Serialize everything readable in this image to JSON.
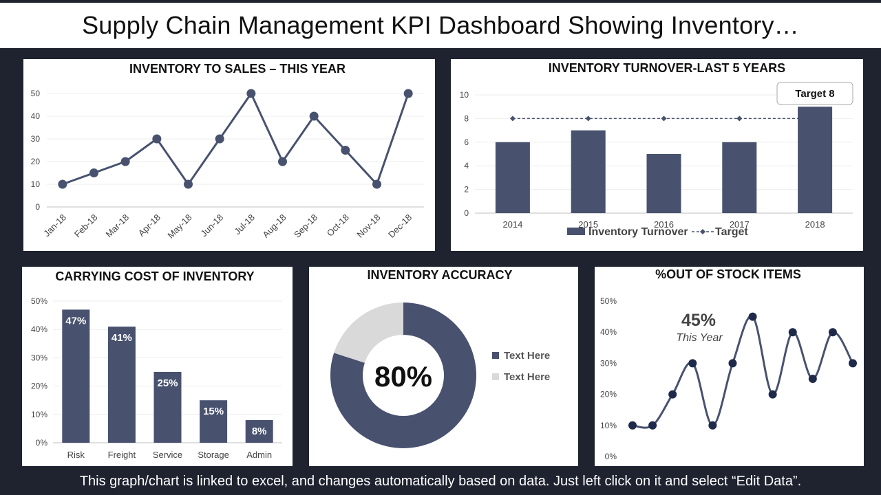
{
  "page": {
    "title": "Supply Chain Management KPI Dashboard Showing Inventory…",
    "footer": "This graph/chart is linked to excel, and changes automatically based on data. Just left click on it and select “Edit Data”."
  },
  "colors": {
    "primary": "#48526f",
    "light": "#d9d9d9",
    "background": "#1f2330"
  },
  "chart_data": [
    {
      "id": "inventory-to-sales",
      "type": "line",
      "title": "INVENTORY TO SALES – THIS YEAR",
      "categories": [
        "Jan-18",
        "Feb-18",
        "Mar-18",
        "Apr-18",
        "May-18",
        "Jun-18",
        "Jul-18",
        "Aug-18",
        "Sep-18",
        "Oct-18",
        "Nov-18",
        "Dec-18"
      ],
      "values": [
        10,
        15,
        20,
        30,
        10,
        30,
        50,
        20,
        40,
        25,
        10,
        50
      ],
      "ylim": [
        0,
        50
      ],
      "yticks": [
        "0",
        "10",
        "20",
        "30",
        "40",
        "50"
      ],
      "grid": true
    },
    {
      "id": "inventory-turnover",
      "type": "bar",
      "title": "INVENTORY TURNOVER-LAST 5 YEARS",
      "categories": [
        "2014",
        "2015",
        "2016",
        "2017",
        "2018"
      ],
      "series": [
        {
          "name": "Inventory Turnover",
          "values": [
            6,
            7,
            5,
            6,
            9
          ]
        },
        {
          "name": "Target",
          "values": [
            8,
            8,
            8,
            8,
            8
          ]
        }
      ],
      "ylim": [
        0,
        10
      ],
      "yticks": [
        "0",
        "2",
        "4",
        "6",
        "8",
        "10"
      ],
      "callout": "Target 8",
      "legend": "bottom"
    },
    {
      "id": "carrying-cost",
      "type": "bar",
      "title": "CARRYING COST OF INVENTORY",
      "categories": [
        "Risk",
        "Freight",
        "Service",
        "Storage",
        "Admin"
      ],
      "values": [
        47,
        41,
        25,
        15,
        8
      ],
      "labels": [
        "47%",
        "41%",
        "25%",
        "15%",
        "8%"
      ],
      "ylim": [
        0,
        50
      ],
      "yticks": [
        "0%",
        "10%",
        "20%",
        "30%",
        "40%",
        "50%"
      ]
    },
    {
      "id": "inventory-accuracy",
      "type": "pie",
      "title": "INVENTORY ACCURACY",
      "center_label": "80%",
      "slices": [
        {
          "label": "Text Here",
          "value": 80
        },
        {
          "label": "Text Here",
          "value": 20
        }
      ],
      "legend": "right"
    },
    {
      "id": "out-of-stock",
      "type": "line",
      "title": "%OUT OF STOCK ITEMS",
      "values": [
        10,
        10,
        20,
        30,
        10,
        30,
        45,
        20,
        40,
        25,
        40,
        30
      ],
      "ylim": [
        0,
        50
      ],
      "yticks": [
        "0%",
        "10%",
        "20%",
        "30%",
        "40%",
        "50%"
      ],
      "annotation": {
        "value": "45%",
        "subtitle": "This Year"
      }
    }
  ]
}
